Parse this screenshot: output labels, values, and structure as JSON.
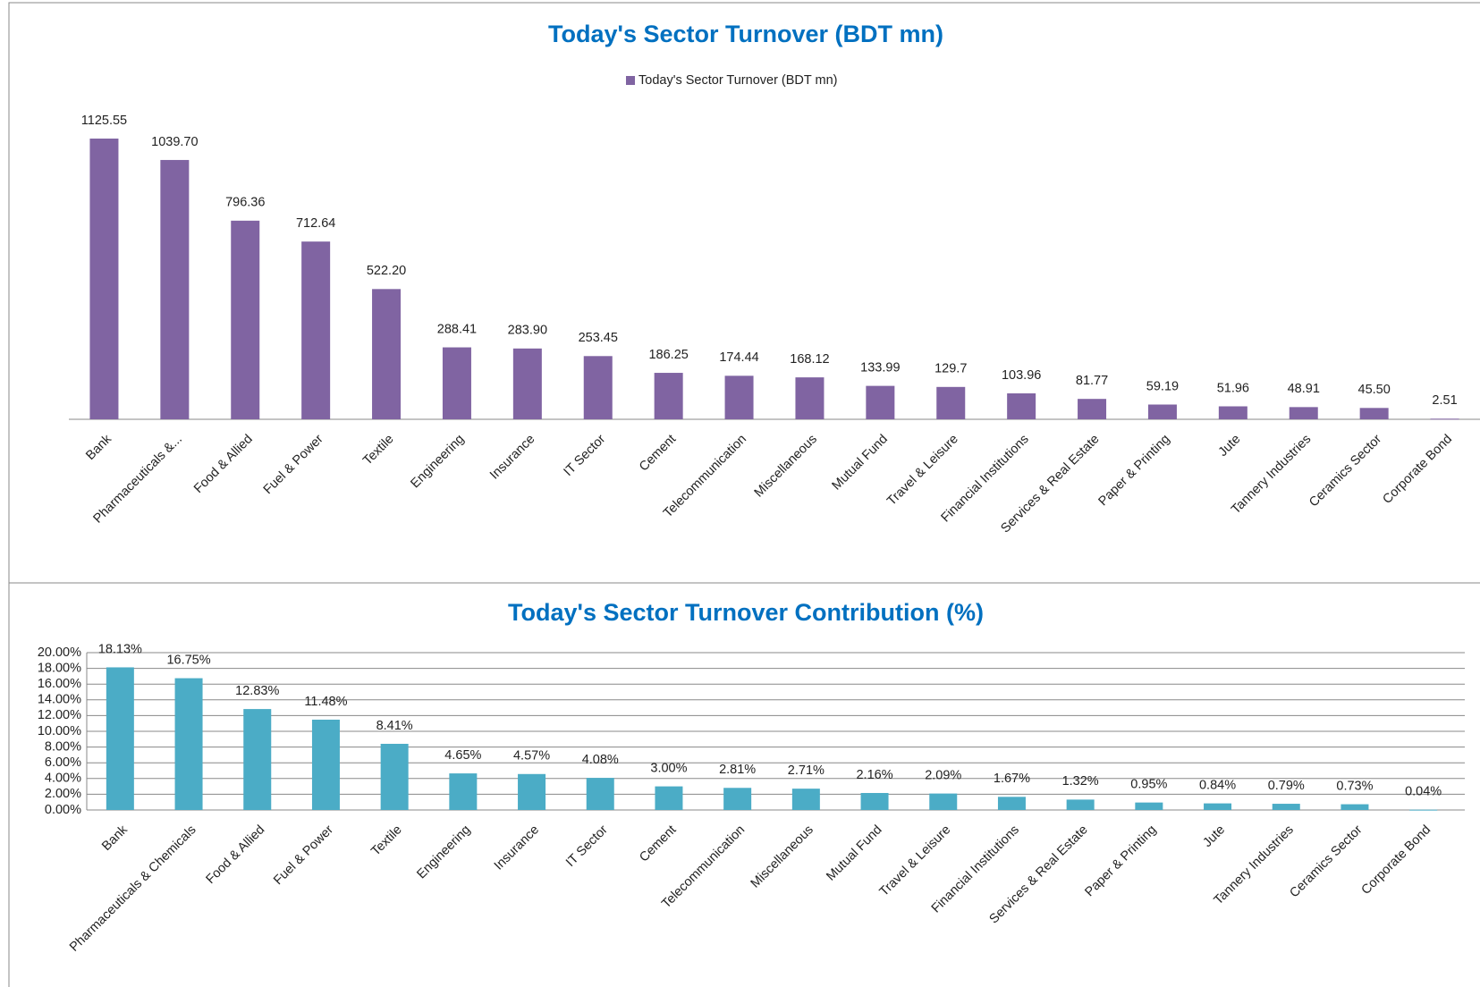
{
  "chart_data": [
    {
      "type": "bar",
      "title": "Today's Sector Turnover (BDT mn)",
      "categories": [
        "Bank",
        "Pharmaceuticals &...",
        "Food & Allied",
        "Fuel & Power",
        "Textile",
        "Engineering",
        "Insurance",
        "IT Sector",
        "Cement",
        "Telecommunication",
        "Miscellaneous",
        "Mutual Fund",
        "Travel & Leisure",
        "Financial Institutions",
        "Services & Real Estate",
        "Paper & Printing",
        "Jute",
        "Tannery Industries",
        "Ceramics Sector",
        "Corporate Bond"
      ],
      "series": [
        {
          "name": "Today's Sector Turnover (BDT mn)",
          "color": "#8064a2",
          "values": [
            1125.55,
            1039.7,
            796.36,
            712.64,
            522.2,
            288.41,
            283.9,
            253.45,
            186.25,
            174.44,
            168.12,
            133.99,
            129.7,
            103.96,
            81.77,
            59.19,
            51.96,
            48.91,
            45.5,
            2.51
          ],
          "value_labels": [
            "1125.55",
            "1039.70",
            "796.36",
            "712.64",
            "522.20",
            "288.41",
            "283.90",
            "253.45",
            "186.25",
            "174.44",
            "168.12",
            "133.99",
            "129.7",
            "103.96",
            "81.77",
            "59.19",
            "51.96",
            "48.91",
            "45.50",
            "2.51"
          ]
        }
      ],
      "legend": "top"
    },
    {
      "type": "bar",
      "title": "Today's Sector Turnover Contribution (%)",
      "categories": [
        "Bank",
        "Pharmaceuticals & Chemicals",
        "Food & Allied",
        "Fuel & Power",
        "Textile",
        "Engineering",
        "Insurance",
        "IT Sector",
        "Cement",
        "Telecommunication",
        "Miscellaneous",
        "Mutual Fund",
        "Travel & Leisure",
        "Financial Institutions",
        "Services & Real Estate",
        "Paper & Printing",
        "Jute",
        "Tannery Industries",
        "Ceramics Sector",
        "Corporate Bond"
      ],
      "values": [
        18.13,
        16.75,
        12.83,
        11.48,
        8.41,
        4.65,
        4.57,
        4.08,
        3.0,
        2.81,
        2.71,
        2.16,
        2.09,
        1.67,
        1.32,
        0.95,
        0.84,
        0.79,
        0.73,
        0.04
      ],
      "value_labels": [
        "18.13%",
        "16.75%",
        "12.83%",
        "11.48%",
        "8.41%",
        "4.65%",
        "4.57%",
        "4.08%",
        "3.00%",
        "2.81%",
        "2.71%",
        "2.16%",
        "2.09%",
        "1.67%",
        "1.32%",
        "0.95%",
        "0.84%",
        "0.79%",
        "0.73%",
        "0.04%"
      ],
      "color": "#4bacc6",
      "ylim": [
        0,
        20
      ],
      "yticks": [
        {
          "value": 0,
          "label": "0.00%"
        },
        {
          "value": 2,
          "label": "2.00%"
        },
        {
          "value": 4,
          "label": "4.00%"
        },
        {
          "value": 6,
          "label": "6.00%"
        },
        {
          "value": 8,
          "label": "8.00%"
        },
        {
          "value": 10,
          "label": "10.00%"
        },
        {
          "value": 12,
          "label": "12.00%"
        },
        {
          "value": 14,
          "label": "14.00%"
        },
        {
          "value": 16,
          "label": "16.00%"
        },
        {
          "value": 18,
          "label": "18.00%"
        },
        {
          "value": 20,
          "label": "20.00%"
        }
      ],
      "grid": true
    }
  ]
}
